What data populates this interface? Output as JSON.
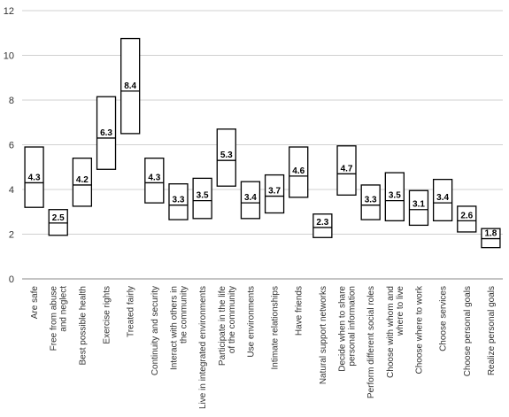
{
  "chart_data": {
    "type": "box",
    "title": "",
    "xlabel": "",
    "ylabel": "",
    "ylim": [
      0,
      12
    ],
    "yticks": [
      0,
      2,
      4,
      6,
      8,
      10,
      12
    ],
    "grid": "horizontal",
    "categories": [
      {
        "label": [
          "Are safe"
        ],
        "low": 3.2,
        "high": 5.9,
        "median": 4.3,
        "value_label": "4.3"
      },
      {
        "label": [
          "Free from abuse",
          "and neglect"
        ],
        "low": 1.95,
        "high": 3.1,
        "median": 2.5,
        "value_label": "2.5"
      },
      {
        "label": [
          "Best possible health"
        ],
        "low": 3.25,
        "high": 5.4,
        "median": 4.2,
        "value_label": "4.2"
      },
      {
        "label": [
          "Exercise rights"
        ],
        "low": 4.9,
        "high": 8.15,
        "median": 6.3,
        "value_label": "6.3"
      },
      {
        "label": [
          "Treated fairly"
        ],
        "low": 6.5,
        "high": 10.75,
        "median": 8.4,
        "value_label": "8.4"
      },
      {
        "label": [
          "Continuity and security"
        ],
        "low": 3.4,
        "high": 5.4,
        "median": 4.3,
        "value_label": "4.3"
      },
      {
        "label": [
          "Interact with others in",
          "the community"
        ],
        "low": 2.65,
        "high": 4.25,
        "median": 3.3,
        "value_label": "3.3"
      },
      {
        "label": [
          "Live in integrated environments"
        ],
        "low": 2.7,
        "high": 4.5,
        "median": 3.5,
        "value_label": "3.5"
      },
      {
        "label": [
          "Participate in the life",
          "of the community"
        ],
        "low": 4.15,
        "high": 6.7,
        "median": 5.3,
        "value_label": "5.3"
      },
      {
        "label": [
          "Use environments"
        ],
        "low": 2.7,
        "high": 4.35,
        "median": 3.4,
        "value_label": "3.4"
      },
      {
        "label": [
          "Intimate relationships"
        ],
        "low": 2.95,
        "high": 4.65,
        "median": 3.7,
        "value_label": "3.7"
      },
      {
        "label": [
          "Have friends"
        ],
        "low": 3.65,
        "high": 5.9,
        "median": 4.6,
        "value_label": "4.6"
      },
      {
        "label": [
          "Natural support networks"
        ],
        "low": 1.85,
        "high": 2.9,
        "median": 2.3,
        "value_label": "2.3"
      },
      {
        "label": [
          "Decide when to share",
          "personal information"
        ],
        "low": 3.75,
        "high": 5.95,
        "median": 4.7,
        "value_label": "4.7"
      },
      {
        "label": [
          "Perform different social roles"
        ],
        "low": 2.65,
        "high": 4.2,
        "median": 3.3,
        "value_label": "3.3"
      },
      {
        "label": [
          "Choose with whom and",
          "where to live"
        ],
        "low": 2.6,
        "high": 4.75,
        "median": 3.5,
        "value_label": "3.5"
      },
      {
        "label": [
          "Choose where to work"
        ],
        "low": 2.4,
        "high": 3.95,
        "median": 3.1,
        "value_label": "3.1"
      },
      {
        "label": [
          "Choose services"
        ],
        "low": 2.6,
        "high": 4.45,
        "median": 3.4,
        "value_label": "3.4"
      },
      {
        "label": [
          "Choose personal goals"
        ],
        "low": 2.1,
        "high": 3.25,
        "median": 2.6,
        "value_label": "2.6"
      },
      {
        "label": [
          "Realize personal goals"
        ],
        "low": 1.4,
        "high": 2.25,
        "median": 1.8,
        "value_label": "1.8"
      }
    ]
  }
}
